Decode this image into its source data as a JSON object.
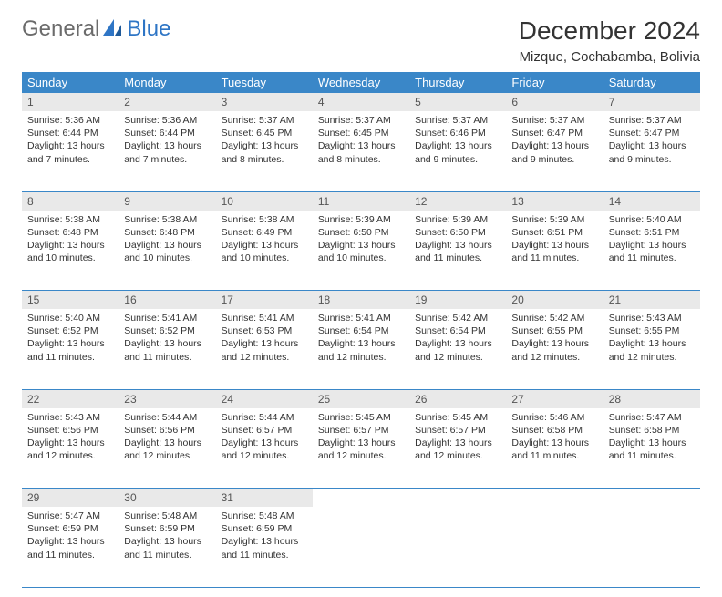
{
  "brand": {
    "part1": "General",
    "part2": "Blue"
  },
  "title": "December 2024",
  "location": "Mizque, Cochabamba, Bolivia",
  "colors": {
    "header_bg": "#3a87c8",
    "header_text": "#ffffff",
    "daynum_bg": "#e9e9e9",
    "rule": "#3a87c8",
    "brand_blue": "#2e75c5",
    "brand_gray": "#6b6b6b"
  },
  "day_headers": [
    "Sunday",
    "Monday",
    "Tuesday",
    "Wednesday",
    "Thursday",
    "Friday",
    "Saturday"
  ],
  "weeks": [
    [
      {
        "n": "1",
        "sr": "5:36 AM",
        "ss": "6:44 PM",
        "dl": "13 hours and 7 minutes."
      },
      {
        "n": "2",
        "sr": "5:36 AM",
        "ss": "6:44 PM",
        "dl": "13 hours and 7 minutes."
      },
      {
        "n": "3",
        "sr": "5:37 AM",
        "ss": "6:45 PM",
        "dl": "13 hours and 8 minutes."
      },
      {
        "n": "4",
        "sr": "5:37 AM",
        "ss": "6:45 PM",
        "dl": "13 hours and 8 minutes."
      },
      {
        "n": "5",
        "sr": "5:37 AM",
        "ss": "6:46 PM",
        "dl": "13 hours and 9 minutes."
      },
      {
        "n": "6",
        "sr": "5:37 AM",
        "ss": "6:47 PM",
        "dl": "13 hours and 9 minutes."
      },
      {
        "n": "7",
        "sr": "5:37 AM",
        "ss": "6:47 PM",
        "dl": "13 hours and 9 minutes."
      }
    ],
    [
      {
        "n": "8",
        "sr": "5:38 AM",
        "ss": "6:48 PM",
        "dl": "13 hours and 10 minutes."
      },
      {
        "n": "9",
        "sr": "5:38 AM",
        "ss": "6:48 PM",
        "dl": "13 hours and 10 minutes."
      },
      {
        "n": "10",
        "sr": "5:38 AM",
        "ss": "6:49 PM",
        "dl": "13 hours and 10 minutes."
      },
      {
        "n": "11",
        "sr": "5:39 AM",
        "ss": "6:50 PM",
        "dl": "13 hours and 10 minutes."
      },
      {
        "n": "12",
        "sr": "5:39 AM",
        "ss": "6:50 PM",
        "dl": "13 hours and 11 minutes."
      },
      {
        "n": "13",
        "sr": "5:39 AM",
        "ss": "6:51 PM",
        "dl": "13 hours and 11 minutes."
      },
      {
        "n": "14",
        "sr": "5:40 AM",
        "ss": "6:51 PM",
        "dl": "13 hours and 11 minutes."
      }
    ],
    [
      {
        "n": "15",
        "sr": "5:40 AM",
        "ss": "6:52 PM",
        "dl": "13 hours and 11 minutes."
      },
      {
        "n": "16",
        "sr": "5:41 AM",
        "ss": "6:52 PM",
        "dl": "13 hours and 11 minutes."
      },
      {
        "n": "17",
        "sr": "5:41 AM",
        "ss": "6:53 PM",
        "dl": "13 hours and 12 minutes."
      },
      {
        "n": "18",
        "sr": "5:41 AM",
        "ss": "6:54 PM",
        "dl": "13 hours and 12 minutes."
      },
      {
        "n": "19",
        "sr": "5:42 AM",
        "ss": "6:54 PM",
        "dl": "13 hours and 12 minutes."
      },
      {
        "n": "20",
        "sr": "5:42 AM",
        "ss": "6:55 PM",
        "dl": "13 hours and 12 minutes."
      },
      {
        "n": "21",
        "sr": "5:43 AM",
        "ss": "6:55 PM",
        "dl": "13 hours and 12 minutes."
      }
    ],
    [
      {
        "n": "22",
        "sr": "5:43 AM",
        "ss": "6:56 PM",
        "dl": "13 hours and 12 minutes."
      },
      {
        "n": "23",
        "sr": "5:44 AM",
        "ss": "6:56 PM",
        "dl": "13 hours and 12 minutes."
      },
      {
        "n": "24",
        "sr": "5:44 AM",
        "ss": "6:57 PM",
        "dl": "13 hours and 12 minutes."
      },
      {
        "n": "25",
        "sr": "5:45 AM",
        "ss": "6:57 PM",
        "dl": "13 hours and 12 minutes."
      },
      {
        "n": "26",
        "sr": "5:45 AM",
        "ss": "6:57 PM",
        "dl": "13 hours and 12 minutes."
      },
      {
        "n": "27",
        "sr": "5:46 AM",
        "ss": "6:58 PM",
        "dl": "13 hours and 11 minutes."
      },
      {
        "n": "28",
        "sr": "5:47 AM",
        "ss": "6:58 PM",
        "dl": "13 hours and 11 minutes."
      }
    ],
    [
      {
        "n": "29",
        "sr": "5:47 AM",
        "ss": "6:59 PM",
        "dl": "13 hours and 11 minutes."
      },
      {
        "n": "30",
        "sr": "5:48 AM",
        "ss": "6:59 PM",
        "dl": "13 hours and 11 minutes."
      },
      {
        "n": "31",
        "sr": "5:48 AM",
        "ss": "6:59 PM",
        "dl": "13 hours and 11 minutes."
      },
      null,
      null,
      null,
      null
    ]
  ],
  "labels": {
    "sunrise": "Sunrise:",
    "sunset": "Sunset:",
    "daylight": "Daylight:"
  }
}
